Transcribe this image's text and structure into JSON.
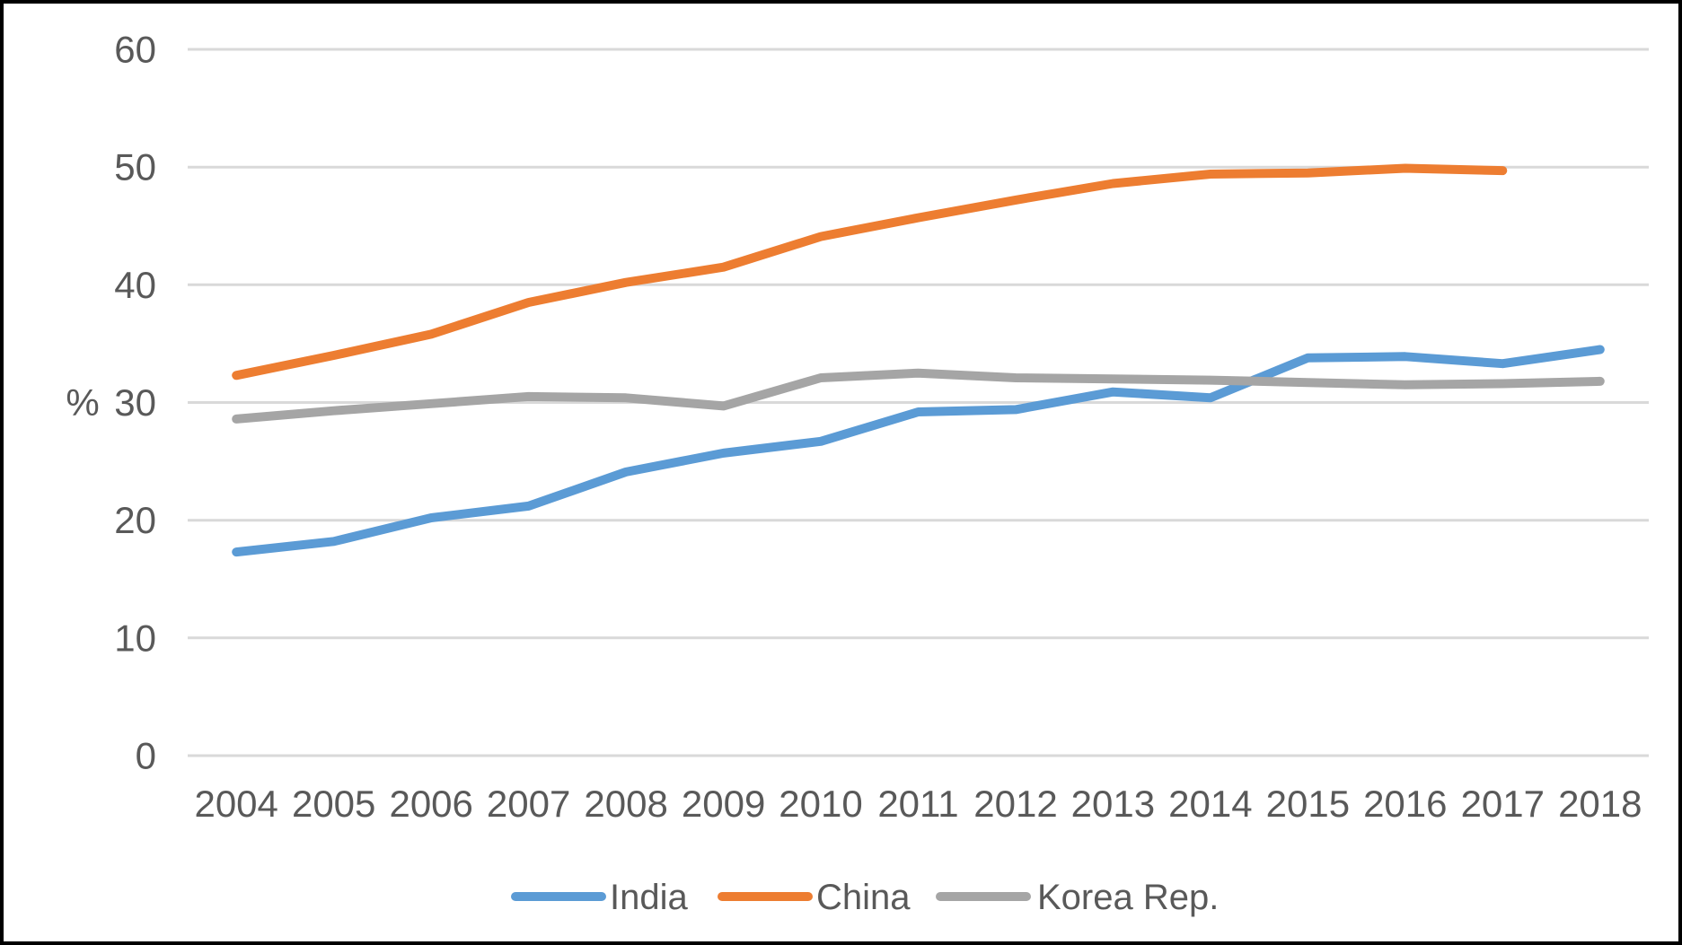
{
  "chart_data": {
    "type": "line",
    "title": "",
    "xlabel": "",
    "ylabel": "%",
    "ylim": [
      0,
      60
    ],
    "yticks": [
      0,
      10,
      20,
      30,
      40,
      50,
      60
    ],
    "grid": true,
    "legend_position": "bottom",
    "categories": [
      "2004",
      "2005",
      "2006",
      "2007",
      "2008",
      "2009",
      "2010",
      "2011",
      "2012",
      "2013",
      "2014",
      "2015",
      "2016",
      "2017",
      "2018"
    ],
    "series": [
      {
        "name": "India",
        "color": "#5B9BD5",
        "values": [
          17.3,
          18.2,
          20.2,
          21.2,
          24.1,
          25.7,
          26.7,
          29.2,
          29.4,
          30.9,
          30.4,
          33.8,
          33.9,
          33.3,
          34.5
        ]
      },
      {
        "name": "China",
        "color": "#ED7D31",
        "values": [
          32.3,
          34.0,
          35.8,
          38.5,
          40.2,
          41.5,
          44.1,
          45.7,
          47.2,
          48.6,
          49.4,
          49.5,
          49.9,
          49.7,
          null
        ]
      },
      {
        "name": "Korea Rep.",
        "color": "#A5A5A5",
        "values": [
          28.6,
          29.3,
          29.9,
          30.5,
          30.4,
          29.7,
          32.1,
          32.5,
          32.1,
          32.0,
          31.9,
          31.7,
          31.5,
          31.6,
          31.8
        ]
      }
    ]
  },
  "styles": {
    "grid_color": "#D9D9D9",
    "text_color": "#595959",
    "background_color": "#FFFFFF",
    "frame_color": "#000000"
  }
}
